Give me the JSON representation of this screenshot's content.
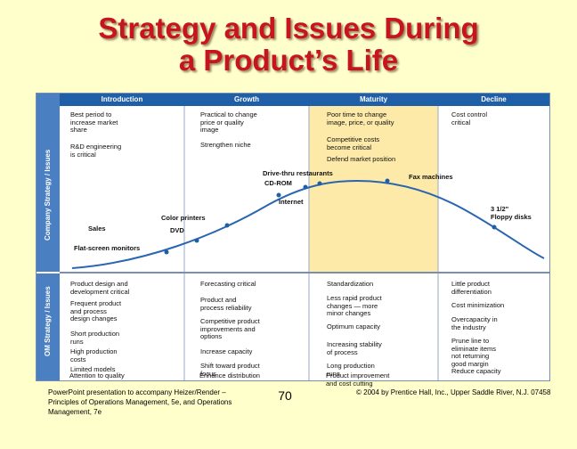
{
  "title": {
    "line1": "Strategy and Issues During",
    "line2": "a Product’s Life"
  },
  "figure": {
    "stages": [
      "Introduction",
      "Growth",
      "Maturity",
      "Decline"
    ],
    "side_labels": {
      "company": "Company Strategy / Issues",
      "om": "OM Strategy / Issues"
    },
    "company_strategy": [
      [
        "Best period to\nincrease market\nshare",
        "R&D engineering\nis critical"
      ],
      [
        "Practical to change\nprice or quality\nimage",
        "Strengthen niche"
      ],
      [
        "Poor time to change\nimage, price, or quality",
        "Competitive costs\nbecome critical",
        "Defend market position"
      ],
      [
        "Cost control\ncritical"
      ]
    ],
    "products": {
      "drive_thru": "Drive-thru restaurants",
      "cd_rom": "CD-ROM",
      "internet": "Internet",
      "fax": "Fax machines",
      "floppy": "3 1/2\"\nFloppy disks",
      "color_printers": "Color printers",
      "dvd": "DVD",
      "sales": "Sales",
      "flat_screen": "Flat-screen monitors"
    },
    "om_strategy": [
      [
        "Product design and\ndevelopment critical",
        "Frequent product\nand process\ndesign changes",
        "Short production\nruns",
        "High production\ncosts",
        "Limited models",
        "Attention to quality"
      ],
      [
        "Forecasting critical",
        "Product and\nprocess reliability",
        "Competitive product\nimprovements and\noptions",
        "Increase capacity",
        "Shift toward product\nfocus",
        "Enhance distribution"
      ],
      [
        "Standardization",
        "Less rapid product\nchanges — more\nminor changes",
        "Optimum capacity",
        "Increasing stability\nof process",
        "Long production\nruns",
        "Product improvement\nand cost cutting"
      ],
      [
        "Little product\ndifferentiation",
        "Cost minimization",
        "Overcapacity in\nthe industry",
        "Prune line to\neliminate items\nnot returning\ngood margin",
        "Reduce capacity"
      ]
    ],
    "colors": {
      "sidebar": "#4a7fc1",
      "header": "#1e5fa8",
      "maturity_shade": "#fde9a8",
      "curve": "#2a66b0"
    }
  },
  "footer": {
    "left": "PowerPoint presentation to accompany Heizer/Render – Principles of Operations Management, 5e, and Operations Management, 7e",
    "page": "70",
    "right": "© 2004 by Prentice Hall, Inc., Upper Saddle River, N.J. 07458"
  }
}
